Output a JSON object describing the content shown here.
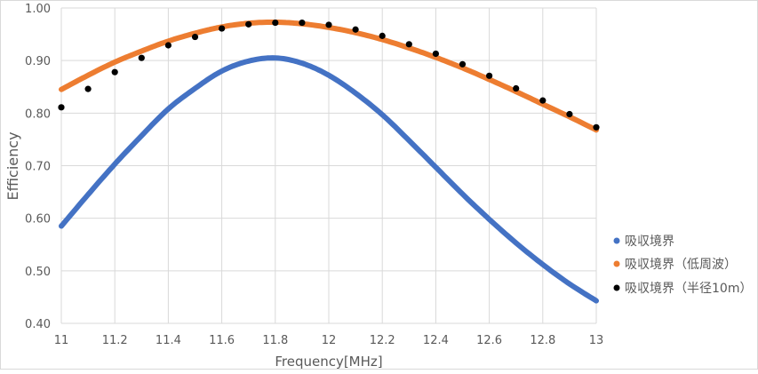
{
  "chart_data": {
    "type": "line",
    "title": "",
    "xlabel": "Frequency[MHz]",
    "ylabel": "Efficiency",
    "xlim": [
      11,
      13
    ],
    "ylim": [
      0.4,
      1.0
    ],
    "xticks": [
      "11",
      "11.2",
      "11.4",
      "11.6",
      "11.8",
      "12",
      "12.2",
      "12.4",
      "12.6",
      "12.8",
      "13"
    ],
    "yticks": [
      "0.40",
      "0.50",
      "0.60",
      "0.70",
      "0.80",
      "0.90",
      "1.00"
    ],
    "grid": true,
    "legend_position": "right",
    "x": [
      11.0,
      11.1,
      11.2,
      11.3,
      11.4,
      11.5,
      11.6,
      11.7,
      11.8,
      11.9,
      12.0,
      12.1,
      12.2,
      12.3,
      12.4,
      12.5,
      12.6,
      12.7,
      12.8,
      12.9,
      13.0
    ],
    "series": [
      {
        "name": "吸収境界",
        "color": "#4472c4",
        "style": "dense-markers",
        "values": [
          0.585,
          0.645,
          0.703,
          0.757,
          0.808,
          0.847,
          0.88,
          0.899,
          0.905,
          0.895,
          0.872,
          0.838,
          0.797,
          0.748,
          0.697,
          0.646,
          0.598,
          0.553,
          0.512,
          0.475,
          0.443
        ]
      },
      {
        "name": "吸収境界（低周波）",
        "color": "#ed7d31",
        "style": "dense-markers",
        "values": [
          0.845,
          0.872,
          0.897,
          0.918,
          0.937,
          0.952,
          0.964,
          0.971,
          0.973,
          0.97,
          0.963,
          0.953,
          0.94,
          0.924,
          0.906,
          0.886,
          0.864,
          0.841,
          0.817,
          0.793,
          0.768
        ]
      },
      {
        "name": "吸収境界（半径10m）",
        "color": "#000000",
        "style": "markers",
        "values": [
          0.811,
          0.846,
          0.878,
          0.905,
          0.929,
          0.945,
          0.961,
          0.969,
          0.972,
          0.972,
          0.968,
          0.959,
          0.947,
          0.931,
          0.913,
          0.893,
          0.871,
          0.847,
          0.824,
          0.798,
          0.773
        ]
      }
    ]
  }
}
